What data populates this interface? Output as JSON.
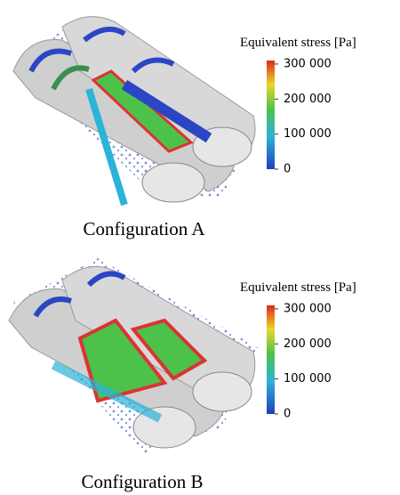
{
  "panels": [
    {
      "caption": "Configuration A",
      "colorbar": {
        "title": "Equivalent stress [Pa]",
        "range": [
          0,
          310000
        ],
        "ticks": [
          {
            "value": 300000,
            "label": "300 000"
          },
          {
            "value": 200000,
            "label": "200 000"
          },
          {
            "value": 100000,
            "label": "100 000"
          },
          0
        ]
      }
    },
    {
      "caption": "Configuration B",
      "colorbar": {
        "title": "Equivalent stress [Pa]",
        "range": [
          0,
          310000
        ],
        "ticks": [
          {
            "value": 300000,
            "label": "300 000"
          },
          {
            "value": 200000,
            "label": "200 000"
          },
          {
            "value": 100000,
            "label": "100 000"
          },
          0
        ]
      }
    }
  ]
}
